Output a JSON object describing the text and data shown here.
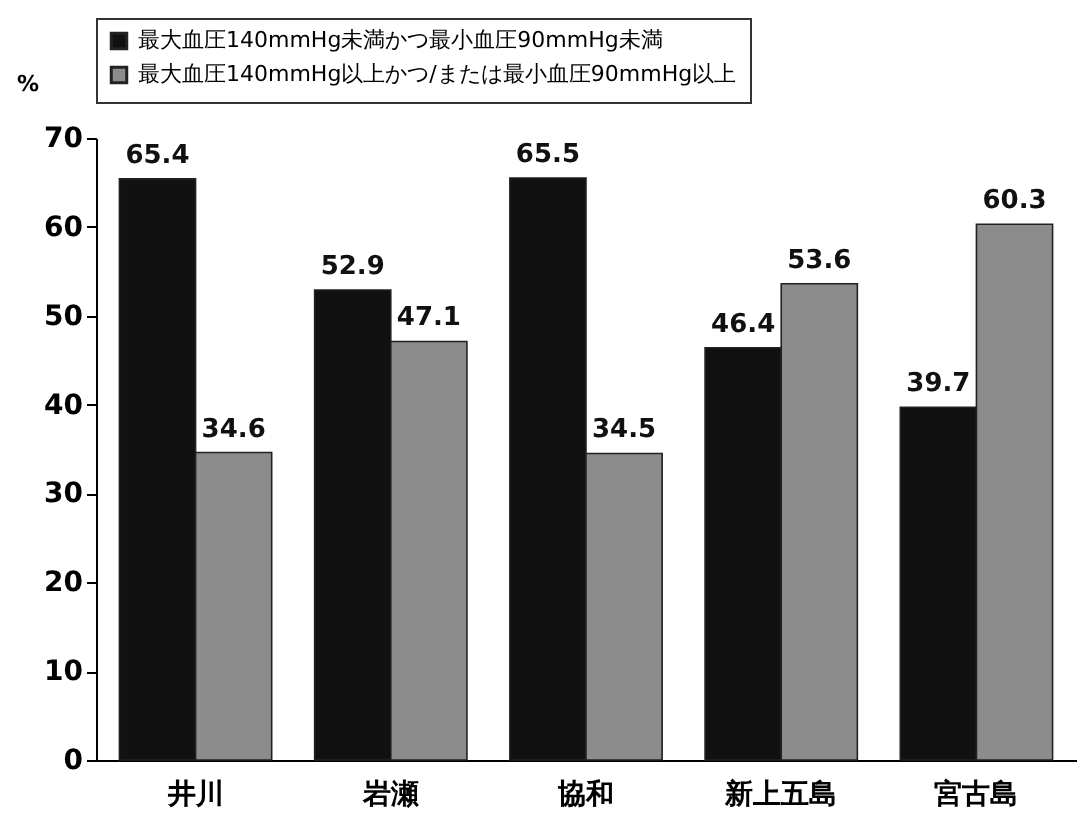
{
  "chart_data": {
    "type": "bar",
    "ylabel": "%",
    "categories": [
      "井川",
      "岩瀬",
      "協和",
      "新上五島",
      "宮古島"
    ],
    "series": [
      {
        "name": "最大血圧140mmHg未満かつ最小血圧90mmHg未満",
        "color": "#111111",
        "values": [
          65.4,
          52.9,
          65.5,
          46.4,
          39.7
        ]
      },
      {
        "name": "最大血圧140mmHg以上かつ/または最小血圧90mmHg以上",
        "color": "#8c8c8c",
        "values": [
          34.6,
          47.1,
          34.5,
          53.6,
          60.3
        ]
      }
    ],
    "ylim": [
      0,
      70
    ],
    "yticks": [
      0,
      10,
      20,
      30,
      40,
      50,
      60,
      70
    ],
    "data_labels": true,
    "grid": false,
    "legend": "top"
  }
}
